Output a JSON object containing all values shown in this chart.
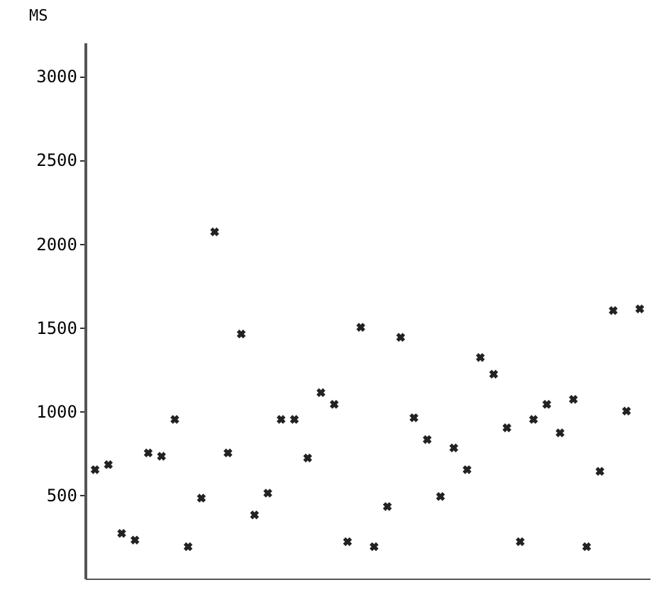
{
  "chart_data": {
    "type": "scatter",
    "ylabel": "MS",
    "categories": [
      null,
      null,
      null,
      null,
      null,
      null,
      null,
      null,
      null,
      null,
      null,
      null,
      null,
      null,
      null,
      null,
      null,
      null,
      null,
      null,
      null,
      null,
      null,
      null,
      null,
      null,
      null,
      null,
      null,
      null,
      null,
      null,
      null,
      null,
      null,
      null,
      null,
      null,
      null,
      null,
      null,
      null
    ],
    "series": [
      {
        "color": "#222222",
        "values": [
          650,
          680,
          270,
          230,
          750,
          730,
          950,
          190,
          480,
          2070,
          750,
          1460,
          380,
          510,
          950,
          950,
          720,
          1110,
          1040,
          220,
          1500,
          190,
          430,
          1440,
          960,
          830,
          490,
          780,
          650,
          1320,
          1220,
          900,
          220,
          950,
          1040,
          870,
          1070,
          190,
          640,
          1600,
          1000,
          1610
        ]
      }
    ],
    "ylim": [
      0,
      3200
    ],
    "yticks": [
      500,
      1000,
      1500,
      2000,
      2500,
      3000
    ],
    "tick_labels": "y",
    "grid": false,
    "marker": "cross"
  }
}
